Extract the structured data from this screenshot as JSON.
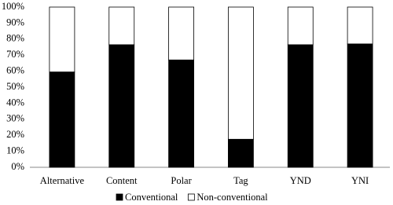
{
  "chart_data": {
    "type": "stacked_bar",
    "categories": [
      "Alternative",
      "Content",
      "Polar",
      "Tag",
      "YND",
      "YNI"
    ],
    "series": [
      {
        "name": "Conventional",
        "color": "#000000",
        "values": [
          59.5,
          76.5,
          67,
          17.5,
          76.5,
          77
        ]
      },
      {
        "name": "Non-conventional",
        "color": "#ffffff",
        "values": [
          40.5,
          23.5,
          33,
          82.5,
          23.5,
          23
        ]
      }
    ],
    "ylim": [
      0,
      100
    ],
    "yticks": [
      {
        "value": 0,
        "label": "0%"
      },
      {
        "value": 10,
        "label": "10%"
      },
      {
        "value": 20,
        "label": "20%"
      },
      {
        "value": 30,
        "label": "30%"
      },
      {
        "value": 40,
        "label": "40%"
      },
      {
        "value": 50,
        "label": "50%"
      },
      {
        "value": 60,
        "label": "60%"
      },
      {
        "value": 70,
        "label": "70%"
      },
      {
        "value": 80,
        "label": "80%"
      },
      {
        "value": 90,
        "label": "90%"
      },
      {
        "value": 100,
        "label": "100%"
      }
    ],
    "grid": false,
    "legend": "bottom"
  }
}
